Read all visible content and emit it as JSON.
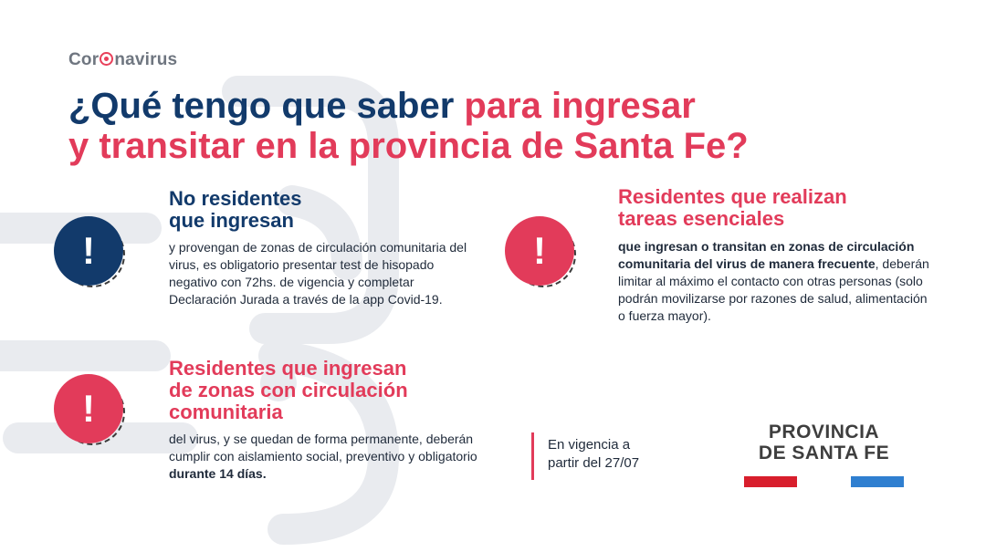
{
  "header": {
    "topic_prefix": "Cor",
    "topic_suffix": "navirus",
    "title_part1": "¿Qué tengo que saber ",
    "title_part2": "para ingresar",
    "title_part3": "y transitar en la provincia de Santa Fe?"
  },
  "sections": [
    {
      "title_line1": "No residentes",
      "title_line2": "que ingresan",
      "body": "y provengan de zonas de circulación comunitaria del virus, es obligatorio presentar test de hisopado negativo con 72hs. de vigencia y completar Declaración Jurada a través de la app Covid-19.",
      "icon": "exclamation-icon",
      "icon_color": "#123a6b"
    },
    {
      "title_line1": "Residentes que ingresan",
      "title_line2": "de zonas con circulación",
      "title_line3": "comunitaria",
      "body_plain": "del virus, y se quedan de forma permanente, deberán cumplir con aislamiento social, preventivo y obligatorio ",
      "body_bold": "durante 14 días.",
      "icon": "exclamation-icon",
      "icon_color": "#e23b5a"
    },
    {
      "title_line1": "Residentes que realizan",
      "title_line2": "tareas esenciales",
      "body_bold": "que ingresan o transitan en zonas de circulación comunitaria del virus de manera frecuente",
      "body_plain": ", deberán limitar al máximo el contacto con otras personas (solo podrán movilizarse por razones de salud, alimentación o fuerza mayor).",
      "icon": "exclamation-icon",
      "icon_color": "#e23b5a"
    }
  ],
  "alert_glyph": "!",
  "validity": {
    "line1": "En vigencia a",
    "line2": "partir del 27/07"
  },
  "logo": {
    "line1": "PROVINCIA",
    "line2": "DE SANTA FE",
    "bar_left_color": "#d81e2c",
    "bar_right_color": "#2f7fd0"
  },
  "colors": {
    "navy": "#123a6b",
    "accent_red": "#e23b5a",
    "watermark": "#e9ebef"
  }
}
